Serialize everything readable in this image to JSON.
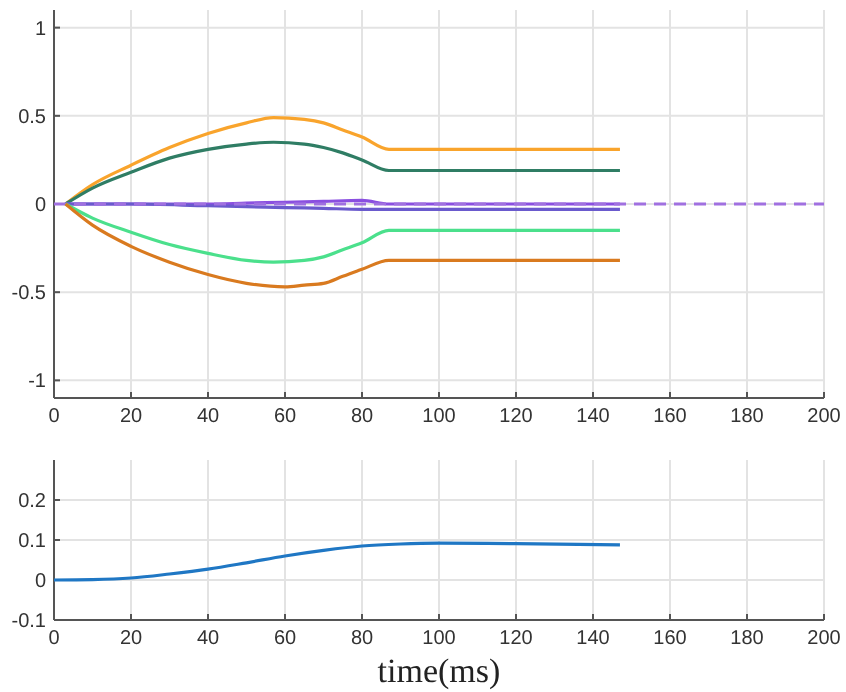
{
  "chart_data": [
    {
      "type": "line",
      "xlim": [
        0,
        200
      ],
      "xticks": [
        0,
        20,
        40,
        60,
        80,
        100,
        120,
        140,
        160,
        180,
        200
      ],
      "ylim": [
        -1.1,
        1.1
      ],
      "yticks": [
        -1,
        -0.5,
        0,
        0.5,
        1
      ],
      "grid": true,
      "series": [
        {
          "color": "#f9a42c",
          "x": [
            3,
            10,
            20,
            30,
            40,
            50,
            57,
            65,
            70,
            75,
            80,
            87,
            100,
            147
          ],
          "values": [
            0,
            0.11,
            0.22,
            0.32,
            0.4,
            0.46,
            0.49,
            0.48,
            0.46,
            0.42,
            0.38,
            0.31,
            0.31,
            0.31
          ]
        },
        {
          "color": "#2f7d64",
          "x": [
            3,
            10,
            20,
            30,
            40,
            50,
            57,
            65,
            70,
            75,
            80,
            87,
            100,
            147
          ],
          "values": [
            0,
            0.09,
            0.18,
            0.26,
            0.31,
            0.34,
            0.35,
            0.34,
            0.32,
            0.29,
            0.25,
            0.19,
            0.19,
            0.19
          ]
        },
        {
          "color": "#8a4fe0",
          "x": [
            3,
            20,
            40,
            50,
            60,
            70,
            80,
            87,
            100,
            147
          ],
          "values": [
            0,
            0,
            0,
            0.005,
            0.01,
            0.015,
            0.02,
            0,
            0,
            0
          ]
        },
        {
          "color": "#6a5acd",
          "x": [
            3,
            20,
            40,
            50,
            60,
            70,
            80,
            87,
            100,
            147
          ],
          "values": [
            0,
            0,
            -0.01,
            -0.015,
            -0.02,
            -0.025,
            -0.03,
            -0.03,
            -0.03,
            -0.03
          ]
        },
        {
          "color": "#a070e0",
          "line_style": "dashed",
          "x": [
            0,
            200
          ],
          "values": [
            0,
            0
          ]
        },
        {
          "color": "#4be08c",
          "x": [
            3,
            10,
            20,
            30,
            40,
            50,
            57,
            65,
            70,
            75,
            80,
            87,
            100,
            147
          ],
          "values": [
            0,
            -0.08,
            -0.16,
            -0.23,
            -0.28,
            -0.32,
            -0.33,
            -0.32,
            -0.3,
            -0.26,
            -0.22,
            -0.15,
            -0.15,
            -0.15
          ]
        },
        {
          "color": "#d97a1f",
          "x": [
            3,
            10,
            20,
            30,
            40,
            50,
            60,
            65,
            70,
            75,
            80,
            87,
            100,
            147
          ],
          "values": [
            0,
            -0.12,
            -0.24,
            -0.33,
            -0.4,
            -0.45,
            -0.47,
            -0.46,
            -0.45,
            -0.41,
            -0.37,
            -0.32,
            -0.32,
            -0.32
          ]
        }
      ]
    },
    {
      "type": "line",
      "xlabel": "time(ms)",
      "xlim": [
        0,
        200
      ],
      "xticks": [
        0,
        20,
        40,
        60,
        80,
        100,
        120,
        140,
        160,
        180,
        200
      ],
      "ylim": [
        -0.1,
        0.3
      ],
      "yticks": [
        -0.1,
        0,
        0.1,
        0.2
      ],
      "grid": true,
      "series": [
        {
          "color": "#1f77c4",
          "x": [
            0,
            10,
            20,
            30,
            40,
            50,
            60,
            70,
            80,
            90,
            100,
            120,
            147
          ],
          "values": [
            0,
            0.001,
            0.005,
            0.015,
            0.027,
            0.043,
            0.06,
            0.074,
            0.085,
            0.09,
            0.092,
            0.091,
            0.088
          ]
        }
      ]
    }
  ]
}
